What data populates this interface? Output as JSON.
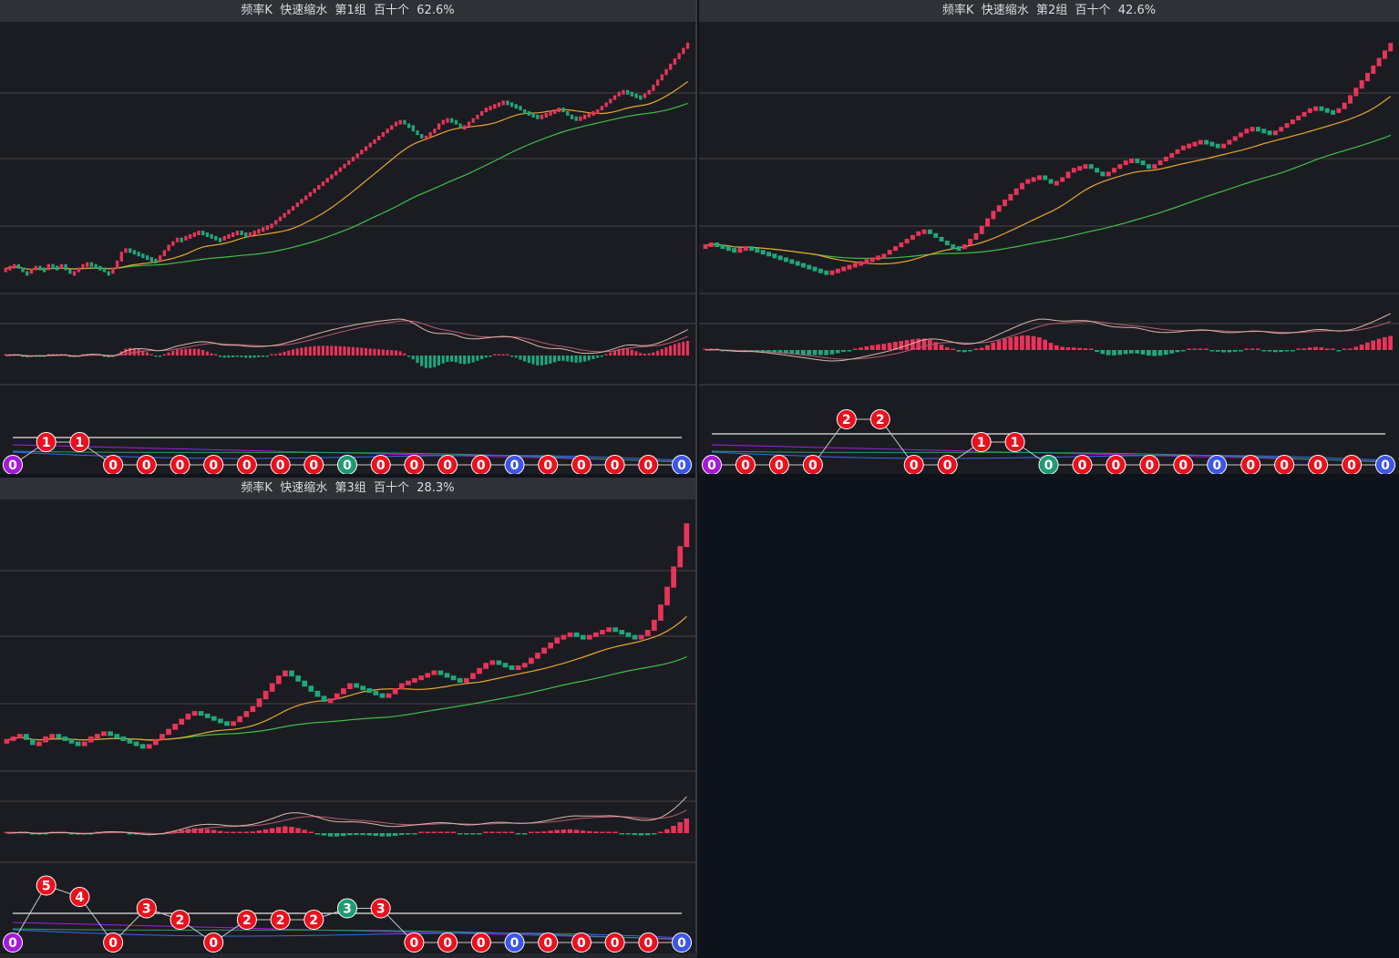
{
  "colors": {
    "panel_bg": "#1b1c21",
    "header_bg": "#303137",
    "grid": "#444549",
    "up": "#e8345a",
    "down": "#1fa77a",
    "ma_short": "#e6a532",
    "ma_long": "#3fbf4a",
    "macd_dif": "#d8b8a8",
    "macd_dea": "#b85a7a",
    "badge_red": "#e8121f",
    "badge_purple": "#a51ad6",
    "badge_green": "#1f9a72",
    "badge_blue": "#3d55e8",
    "ind_white": "#e6e6e6",
    "ind_purple": "#a020e0",
    "ind_blue": "#3a6ae8",
    "ind_green": "#2a9a6a"
  },
  "panels": [
    {
      "title": "频率K  快速缩水  第1组  百十个  62.6%",
      "chart_data": {
        "type": "candlestick",
        "closes": [
          236,
          238,
          240,
          236,
          232,
          230,
          235,
          238,
          236,
          234,
          240,
          238,
          236,
          240,
          234,
          230,
          232,
          236,
          240,
          242,
          240,
          238,
          236,
          232,
          230,
          236,
          244,
          254,
          258,
          256,
          254,
          252,
          250,
          248,
          246,
          244,
          250,
          256,
          262,
          266,
          270,
          268,
          272,
          274,
          276,
          278,
          276,
          274,
          272,
          270,
          268,
          272,
          274,
          276,
          278,
          276,
          274,
          276,
          278,
          280,
          282,
          284,
          286,
          290,
          294,
          298,
          302,
          306,
          310,
          314,
          318,
          322,
          326,
          330,
          334,
          338,
          342,
          346,
          350,
          354,
          358,
          362,
          366,
          370,
          374,
          378,
          382,
          386,
          390,
          394,
          398,
          402,
          404,
          400,
          398,
          392,
          388,
          384,
          386,
          390,
          394,
          400,
          404,
          406,
          404,
          400,
          396,
          398,
          402,
          406,
          410,
          414,
          418,
          420,
          422,
          424,
          426,
          424,
          422,
          420,
          416,
          414,
          412,
          410,
          408,
          410,
          412,
          414,
          416,
          418,
          414,
          410,
          408,
          406,
          408,
          410,
          412,
          414,
          416,
          420,
          424,
          428,
          432,
          436,
          438,
          436,
          434,
          432,
          430,
          434,
          438,
          444,
          450,
          456,
          462,
          468,
          474,
          480,
          486,
          492
        ],
        "badges": [
          {
            "label": "0",
            "color": "purple",
            "level": 0
          },
          {
            "label": "1",
            "color": "red",
            "level": 1
          },
          {
            "label": "1",
            "color": "red",
            "level": 1
          },
          {
            "label": "0",
            "color": "red",
            "level": 0
          },
          {
            "label": "0",
            "color": "red",
            "level": 0
          },
          {
            "label": "0",
            "color": "red",
            "level": 0
          },
          {
            "label": "0",
            "color": "red",
            "level": 0
          },
          {
            "label": "0",
            "color": "red",
            "level": 0
          },
          {
            "label": "0",
            "color": "red",
            "level": 0
          },
          {
            "label": "0",
            "color": "red",
            "level": 0
          },
          {
            "label": "0",
            "color": "green",
            "level": 0
          },
          {
            "label": "0",
            "color": "red",
            "level": 0
          },
          {
            "label": "0",
            "color": "red",
            "level": 0
          },
          {
            "label": "0",
            "color": "red",
            "level": 0
          },
          {
            "label": "0",
            "color": "red",
            "level": 0
          },
          {
            "label": "0",
            "color": "blue",
            "level": 0
          },
          {
            "label": "0",
            "color": "red",
            "level": 0
          },
          {
            "label": "0",
            "color": "red",
            "level": 0
          },
          {
            "label": "0",
            "color": "red",
            "level": 0
          },
          {
            "label": "0",
            "color": "red",
            "level": 0
          },
          {
            "label": "0",
            "color": "blue",
            "level": 0
          }
        ]
      }
    },
    {
      "title": "频率K  快速缩水  第2组  百十个  42.6%",
      "chart_data": {
        "type": "candlestick",
        "closes": [
          280,
          282,
          280,
          278,
          276,
          274,
          276,
          278,
          276,
          274,
          272,
          270,
          268,
          266,
          264,
          262,
          260,
          258,
          256,
          254,
          252,
          250,
          252,
          254,
          256,
          258,
          260,
          262,
          264,
          266,
          268,
          270,
          274,
          278,
          282,
          286,
          290,
          294,
          296,
          292,
          288,
          284,
          280,
          278,
          276,
          280,
          286,
          292,
          300,
          308,
          316,
          322,
          328,
          334,
          340,
          346,
          350,
          352,
          354,
          350,
          346,
          348,
          352,
          358,
          362,
          364,
          366,
          362,
          358,
          356,
          358,
          362,
          366,
          370,
          372,
          370,
          366,
          364,
          366,
          370,
          374,
          378,
          382,
          386,
          388,
          390,
          392,
          390,
          388,
          386,
          388,
          392,
          396,
          400,
          404,
          406,
          404,
          402,
          400,
          402,
          406,
          410,
          414,
          418,
          422,
          426,
          428,
          426,
          424,
          422,
          426,
          432,
          440,
          448,
          456,
          464,
          472,
          480,
          488,
          496
        ],
        "badges": [
          {
            "label": "0",
            "color": "purple",
            "level": 0
          },
          {
            "label": "0",
            "color": "red",
            "level": 0
          },
          {
            "label": "0",
            "color": "red",
            "level": 0
          },
          {
            "label": "0",
            "color": "red",
            "level": 0
          },
          {
            "label": "2",
            "color": "red",
            "level": 2
          },
          {
            "label": "2",
            "color": "red",
            "level": 2
          },
          {
            "label": "0",
            "color": "red",
            "level": 0
          },
          {
            "label": "0",
            "color": "red",
            "level": 0
          },
          {
            "label": "1",
            "color": "red",
            "level": 1
          },
          {
            "label": "1",
            "color": "red",
            "level": 1
          },
          {
            "label": "0",
            "color": "green",
            "level": 0
          },
          {
            "label": "0",
            "color": "red",
            "level": 0
          },
          {
            "label": "0",
            "color": "red",
            "level": 0
          },
          {
            "label": "0",
            "color": "red",
            "level": 0
          },
          {
            "label": "0",
            "color": "red",
            "level": 0
          },
          {
            "label": "0",
            "color": "blue",
            "level": 0
          },
          {
            "label": "0",
            "color": "red",
            "level": 0
          },
          {
            "label": "0",
            "color": "red",
            "level": 0
          },
          {
            "label": "0",
            "color": "red",
            "level": 0
          },
          {
            "label": "0",
            "color": "red",
            "level": 0
          },
          {
            "label": "0",
            "color": "blue",
            "level": 0
          }
        ]
      }
    },
    {
      "title": "频率K  快速缩水  第3组  百十个  28.3%",
      "chart_data": {
        "type": "candlestick",
        "closes": [
          250,
          252,
          254,
          250,
          246,
          248,
          252,
          254,
          252,
          250,
          248,
          246,
          248,
          252,
          254,
          256,
          254,
          252,
          250,
          248,
          246,
          244,
          246,
          250,
          254,
          258,
          262,
          266,
          270,
          272,
          270,
          268,
          266,
          264,
          262,
          264,
          268,
          272,
          276,
          282,
          288,
          294,
          300,
          304,
          300,
          296,
          292,
          288,
          284,
          280,
          282,
          286,
          290,
          294,
          292,
          290,
          288,
          286,
          284,
          286,
          290,
          294,
          296,
          298,
          300,
          302,
          304,
          302,
          300,
          298,
          296,
          298,
          302,
          306,
          310,
          312,
          310,
          308,
          306,
          308,
          310,
          314,
          318,
          322,
          326,
          330,
          332,
          334,
          332,
          330,
          332,
          334,
          336,
          338,
          336,
          334,
          332,
          330,
          332,
          336,
          344,
          356,
          370,
          386,
          402,
          420
        ],
        "badges": [
          {
            "label": "0",
            "color": "purple",
            "level": 0
          },
          {
            "label": "5",
            "color": "red",
            "level": 5
          },
          {
            "label": "4",
            "color": "red",
            "level": 4
          },
          {
            "label": "0",
            "color": "red",
            "level": 0
          },
          {
            "label": "3",
            "color": "red",
            "level": 3
          },
          {
            "label": "2",
            "color": "red",
            "level": 2
          },
          {
            "label": "0",
            "color": "red",
            "level": 0
          },
          {
            "label": "2",
            "color": "red",
            "level": 2
          },
          {
            "label": "2",
            "color": "red",
            "level": 2
          },
          {
            "label": "2",
            "color": "red",
            "level": 2
          },
          {
            "label": "3",
            "color": "green",
            "level": 3
          },
          {
            "label": "3",
            "color": "red",
            "level": 3
          },
          {
            "label": "0",
            "color": "red",
            "level": 0
          },
          {
            "label": "0",
            "color": "red",
            "level": 0
          },
          {
            "label": "0",
            "color": "red",
            "level": 0
          },
          {
            "label": "0",
            "color": "blue",
            "level": 0
          },
          {
            "label": "0",
            "color": "red",
            "level": 0
          },
          {
            "label": "0",
            "color": "red",
            "level": 0
          },
          {
            "label": "0",
            "color": "red",
            "level": 0
          },
          {
            "label": "0",
            "color": "red",
            "level": 0
          },
          {
            "label": "0",
            "color": "blue",
            "level": 0
          }
        ]
      }
    }
  ]
}
